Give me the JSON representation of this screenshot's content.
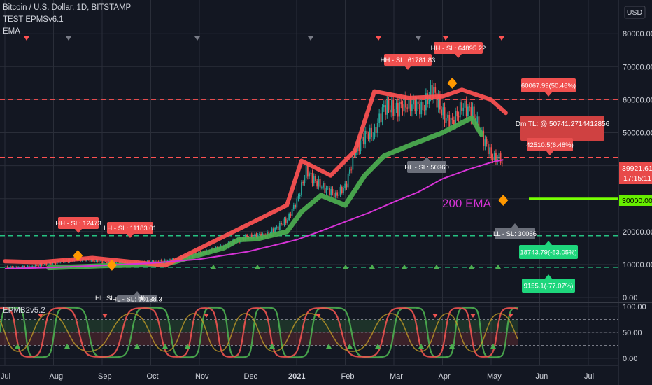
{
  "header": {
    "symbol_title": "Bitcoin / U.S. Dollar, 1D, BITSTAMP",
    "indicator_1": "TEST EPMSv6.1",
    "indicator_2": "EMA",
    "currency": "USD"
  },
  "sub_pane": {
    "title": "EPMB2v5.2"
  },
  "colors": {
    "background": "#131722",
    "grid": "#2a2e39",
    "candle_up": "#26a69a",
    "candle_down": "#ef5350",
    "ema": "#d633d6",
    "green_band": "#4caf50",
    "red_band": "#ff5252",
    "level_red": "#ff5252",
    "level_green": "#26c281",
    "marker_diamond": "#ff9800",
    "target_line": "#76ff03"
  },
  "chart_data": [
    {
      "type": "line",
      "name": "price",
      "x_ticks": [
        "Jul",
        "Aug",
        "Sep",
        "Oct",
        "Nov",
        "Dec",
        "2021",
        "Feb",
        "Mar",
        "Apr",
        "May",
        "Jun",
        "Jul"
      ],
      "y_ticks": [
        "80000.00",
        "70000.00",
        "60000.00",
        "50000.00",
        "40000.00",
        "30000.00",
        "20000.00",
        "10000.00",
        "0.00"
      ],
      "ylim": [
        0,
        85000
      ],
      "series": [
        {
          "kind": "close",
          "points": [
            [
              0,
              9100
            ],
            [
              0.5,
              9200
            ],
            [
              1,
              10500
            ],
            [
              1.5,
              11700
            ],
            [
              2,
              10800
            ],
            [
              2.5,
              10400
            ],
            [
              3,
              10700
            ],
            [
              3.5,
              11500
            ],
            [
              4,
              13300
            ],
            [
              4.5,
              15500
            ],
            [
              5,
              18500
            ],
            [
              5.4,
              19100
            ],
            [
              5.8,
              23500
            ],
            [
              6,
              29000
            ],
            [
              6.2,
              38500
            ],
            [
              6.4,
              35000
            ],
            [
              6.6,
              33000
            ],
            [
              6.8,
              31000
            ],
            [
              7,
              33500
            ],
            [
              7.2,
              44500
            ],
            [
              7.4,
              49000
            ],
            [
              7.6,
              50000
            ],
            [
              7.8,
              58000
            ],
            [
              8,
              57000
            ],
            [
              8.2,
              58500
            ],
            [
              8.4,
              58500
            ],
            [
              8.6,
              57500
            ],
            [
              8.8,
              63500
            ],
            [
              9,
              55500
            ],
            [
              9.2,
              53000
            ],
            [
              9.4,
              58000
            ],
            [
              9.6,
              56500
            ],
            [
              9.8,
              49500
            ],
            [
              10,
              43000
            ],
            [
              10.2,
              42000
            ],
            [
              10.25,
              38500
            ]
          ]
        },
        {
          "kind": "ema",
          "label": "200 EMA",
          "points": [
            [
              0,
              8700
            ],
            [
              1,
              9100
            ],
            [
              2,
              9700
            ],
            [
              3,
              10400
            ],
            [
              4,
              11600
            ],
            [
              5,
              13900
            ],
            [
              6,
              17500
            ],
            [
              6.5,
              20200
            ],
            [
              7,
              23000
            ],
            [
              7.5,
              25800
            ],
            [
              8,
              29000
            ],
            [
              8.5,
              32000
            ],
            [
              9,
              36000
            ],
            [
              9.5,
              38700
            ],
            [
              10,
              41000
            ],
            [
              10.25,
              41800
            ]
          ]
        },
        {
          "kind": "green_trailing_band",
          "points": [
            [
              0.9,
              9000
            ],
            [
              2,
              9600
            ],
            [
              3.3,
              10000
            ],
            [
              4.5,
              15000
            ],
            [
              4.8,
              17500
            ],
            [
              5.2,
              17800
            ],
            [
              5.8,
              20000
            ],
            [
              6.1,
              26000
            ],
            [
              6.5,
              31000
            ],
            [
              7.0,
              28000
            ],
            [
              7.4,
              37000
            ],
            [
              7.8,
              43000
            ],
            [
              8.3,
              46000
            ],
            [
              9.0,
              50000
            ],
            [
              9.6,
              54500
            ],
            [
              9.8,
              49500
            ]
          ]
        },
        {
          "kind": "red_trailing_band",
          "points": [
            [
              0,
              11000
            ],
            [
              0.7,
              10700
            ],
            [
              1.8,
              12000
            ],
            [
              2.8,
              10500
            ],
            [
              3.3,
              9700
            ],
            [
              5.8,
              28000
            ],
            [
              6.1,
              41500
            ],
            [
              6.7,
              37000
            ],
            [
              7.2,
              44500
            ],
            [
              7.6,
              62500
            ],
            [
              8.3,
              60500
            ],
            [
              9.0,
              61000
            ],
            [
              9.4,
              63000
            ],
            [
              10.0,
              60000
            ],
            [
              10.3,
              56000
            ]
          ]
        }
      ],
      "levels": [
        {
          "value": 60067.99,
          "color": "red",
          "label": "60067.99(50.46%)"
        },
        {
          "value": 42510.5,
          "color": "red",
          "label": "42510.5(6.48%)"
        },
        {
          "value": 18743.79,
          "color": "green",
          "label": "18743.79(-53.05%)"
        },
        {
          "value": 9155.1,
          "color": "green",
          "label": "9155.1(-77.07%)"
        },
        {
          "value": 30000.0,
          "color": "lime",
          "label": "30000.00"
        }
      ],
      "annotations": [
        {
          "label": "HH - SL: 64895.22",
          "x": 9.05,
          "y": 64895.22
        },
        {
          "label": "HH - SL: 61781.83",
          "x": 8.15,
          "y": 61781.83
        },
        {
          "label": "HH - SL: 12473",
          "x": 1.85,
          "y": 12473
        },
        {
          "label": "LH - SL: 11183.01",
          "x": 2.3,
          "y": 11183.01
        },
        {
          "label": "HL - SL: 50360",
          "x": 8.55,
          "y": 50360
        },
        {
          "label": "LL - SL: 30066",
          "x": 10.2,
          "y": 30066
        },
        {
          "label": "HL - SL: 10138.3",
          "x": 2.7,
          "y": 10138.3
        },
        {
          "label": "Dm TL: @ 50741.2714412856",
          "x": 11.0,
          "y": 50741.27
        }
      ],
      "price_labels": [
        {
          "label": "39921.61",
          "value": 39921.61
        },
        {
          "label": "17:15:11",
          "value": 36600
        }
      ],
      "ema_caption": "200 EMA",
      "partial_labels": [
        "HL",
        "SL",
        "HL"
      ]
    },
    {
      "type": "line",
      "name": "EPMB2v5.2",
      "y_ticks": [
        "100.00",
        "50.00",
        "0.00"
      ],
      "ylim": [
        0,
        100
      ],
      "bands": [
        25,
        50,
        75
      ],
      "series": [
        {
          "name": "green oscillator",
          "kind": "osc_green"
        },
        {
          "name": "red oscillator",
          "kind": "osc_red"
        }
      ]
    }
  ]
}
